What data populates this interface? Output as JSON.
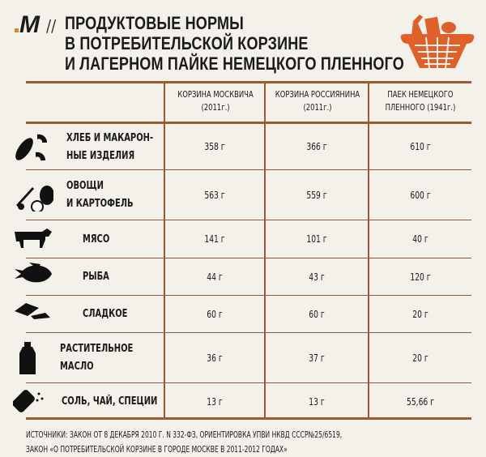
{
  "logo": "M",
  "title_lines": [
    "ПРОДУКТОВЫЕ НОРМЫ",
    "В ПОТРЕБИТЕЛЬСКОЙ КОРЗИНЕ",
    "И ЛАГЕРНОМ ПАЙКЕ НЕМЕЦКОГО ПЛЕННОГО"
  ],
  "separator": "//",
  "accent": "#e0602a",
  "columns": [
    {
      "line1": "КОРЗИНА МОСКВИЧА",
      "line2": "(2011г.)"
    },
    {
      "line1": "КОРЗИНА РОССИЯНИНА",
      "line2": "(2011г.)"
    },
    {
      "line1": "ПАЕК НЕМЕЦКОГО",
      "line2": "ПЛЕННОГО (1941г.)"
    }
  ],
  "rows": [
    {
      "icon": "bread-pasta-icon",
      "line1": "ХЛЕБ И  МАКАРОН-",
      "line2": "НЫЕ ИЗДЕЛИЯ",
      "values": [
        "358 г",
        "366 г",
        "610 г"
      ]
    },
    {
      "icon": "vegetables-icon",
      "line1": "ОВОЩИ",
      "line2": "И КАРТОФЕЛЬ",
      "values": [
        "563 г",
        "559 г",
        "600 г"
      ]
    },
    {
      "icon": "cow-icon",
      "line1": "МЯСО",
      "line2": "",
      "values": [
        "141 г",
        "101 г",
        "40 г"
      ]
    },
    {
      "icon": "fish-icon",
      "line1": "РЫБА",
      "line2": "",
      "values": [
        "44 г",
        "43 г",
        "120 г"
      ]
    },
    {
      "icon": "candy-icon",
      "line1": "СЛАДКОЕ",
      "line2": "",
      "values": [
        "60 г",
        "60 г",
        "20 г"
      ]
    },
    {
      "icon": "oil-bottle-icon",
      "line1": "РАСТИТЕЛЬНОЕ",
      "line2": "МАСЛО",
      "values": [
        "36 г",
        "37 г",
        "20 г"
      ]
    },
    {
      "icon": "salt-shaker-icon",
      "line1": "СОЛЬ, ЧАЙ, СПЕЦИИ",
      "line2": "",
      "values": [
        "13 г",
        "13 г",
        "55,66 г"
      ]
    }
  ],
  "sources": [
    "ИСТОЧНИКИ:  ЗАКОН ОТ 8 ДЕКАБРЯ 2010 Г. N 332-ФЗ, ОРИЕНТИРОВКА УПВИ НКВД СССР№25/6519,",
    "ЗАКОН «О ПОТРЕБИТЕЛЬСКОЙ КОРЗИНЕ В ГОРОДЕ МОСКВЕ В 2011-2012 ГОДАХ»"
  ]
}
